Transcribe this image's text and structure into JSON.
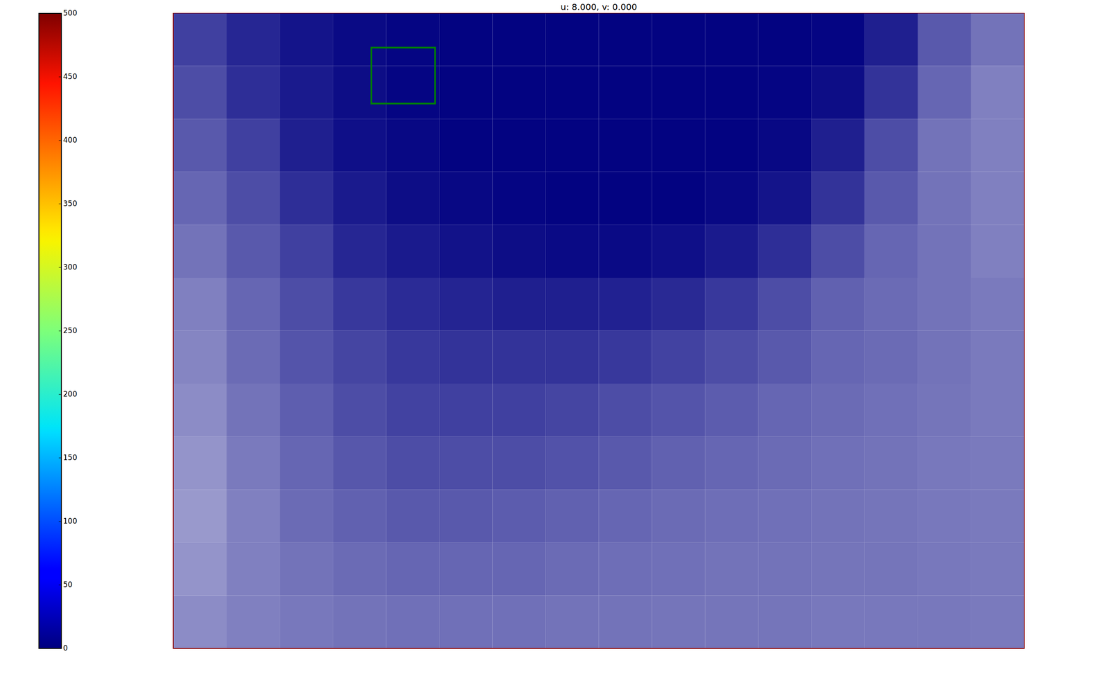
{
  "chart_data": {
    "type": "heatmap",
    "title": "u: 8.000, v: 0.000",
    "tick_labels": false,
    "xlim": [
      0,
      1203
    ],
    "ylim": [
      0,
      898
    ],
    "roi": {
      "x": [
        280,
        370
      ],
      "y": [
        49,
        128
      ],
      "color": "#007f00"
    },
    "colorbar": {
      "range": [
        0,
        500
      ],
      "ticks": [
        0,
        50,
        100,
        150,
        200,
        250,
        300,
        350,
        400,
        450,
        500
      ]
    },
    "empty_share": [
      [
        0.25,
        0.15,
        0.08,
        0.04,
        0.02,
        0.01,
        0.01,
        0.01,
        0.01,
        0.01,
        0.01,
        0.01,
        0.02,
        0.12,
        0.35,
        0.45
      ],
      [
        0.3,
        0.18,
        0.1,
        0.05,
        0.02,
        0.01,
        0.01,
        0.01,
        0.01,
        0.01,
        0.01,
        0.02,
        0.05,
        0.2,
        0.4,
        0.5
      ],
      [
        0.35,
        0.25,
        0.12,
        0.06,
        0.03,
        0.01,
        0.01,
        0.01,
        0.01,
        0.01,
        0.01,
        0.03,
        0.12,
        0.3,
        0.45,
        0.5
      ],
      [
        0.4,
        0.3,
        0.18,
        0.1,
        0.05,
        0.03,
        0.02,
        0.01,
        0.01,
        0.01,
        0.03,
        0.08,
        0.2,
        0.35,
        0.45,
        0.5
      ],
      [
        0.45,
        0.35,
        0.25,
        0.15,
        0.1,
        0.07,
        0.05,
        0.04,
        0.04,
        0.06,
        0.1,
        0.18,
        0.3,
        0.4,
        0.45,
        0.5
      ],
      [
        0.5,
        0.4,
        0.3,
        0.22,
        0.17,
        0.14,
        0.12,
        0.12,
        0.13,
        0.16,
        0.22,
        0.3,
        0.38,
        0.42,
        0.45,
        0.48
      ],
      [
        0.52,
        0.42,
        0.33,
        0.27,
        0.22,
        0.2,
        0.2,
        0.2,
        0.22,
        0.26,
        0.3,
        0.35,
        0.4,
        0.42,
        0.45,
        0.48
      ],
      [
        0.55,
        0.45,
        0.37,
        0.3,
        0.26,
        0.25,
        0.25,
        0.27,
        0.3,
        0.33,
        0.36,
        0.4,
        0.42,
        0.44,
        0.46,
        0.48
      ],
      [
        0.58,
        0.48,
        0.4,
        0.34,
        0.3,
        0.3,
        0.3,
        0.32,
        0.35,
        0.38,
        0.4,
        0.42,
        0.44,
        0.45,
        0.47,
        0.48
      ],
      [
        0.6,
        0.5,
        0.42,
        0.38,
        0.35,
        0.35,
        0.36,
        0.38,
        0.4,
        0.42,
        0.43,
        0.44,
        0.45,
        0.46,
        0.47,
        0.48
      ],
      [
        0.58,
        0.5,
        0.45,
        0.42,
        0.4,
        0.4,
        0.4,
        0.42,
        0.43,
        0.44,
        0.45,
        0.45,
        0.46,
        0.46,
        0.47,
        0.48
      ],
      [
        0.55,
        0.5,
        0.47,
        0.45,
        0.44,
        0.44,
        0.44,
        0.45,
        0.45,
        0.46,
        0.46,
        0.46,
        0.47,
        0.47,
        0.47,
        0.48
      ]
    ]
  }
}
